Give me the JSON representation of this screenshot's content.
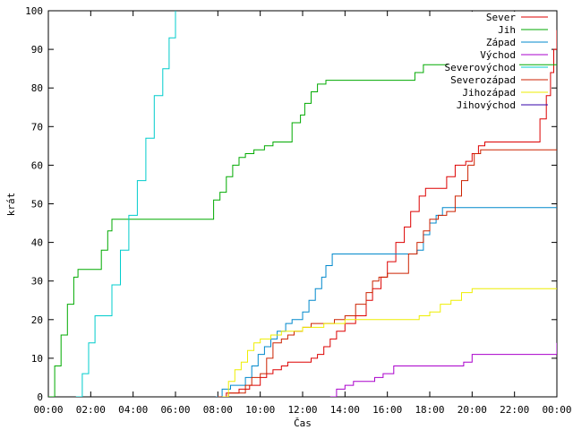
{
  "chart_data": {
    "type": "line",
    "title": "",
    "xlabel": "Čas",
    "ylabel": "krát",
    "xlim": [
      0,
      24
    ],
    "ylim": [
      0,
      100
    ],
    "x_ticks": [
      "00:00",
      "02:00",
      "04:00",
      "06:00",
      "08:00",
      "10:00",
      "12:00",
      "14:00",
      "16:00",
      "18:00",
      "20:00",
      "22:00",
      "00:00"
    ],
    "y_ticks": [
      0,
      10,
      20,
      30,
      40,
      50,
      60,
      70,
      80,
      90,
      100
    ],
    "grid": false,
    "legend_position": "top-right",
    "series": [
      {
        "name": "Sever",
        "color": "#dd0000",
        "points": [
          [
            8.0,
            0
          ],
          [
            8.4,
            1
          ],
          [
            9.0,
            2
          ],
          [
            9.5,
            3
          ],
          [
            10.0,
            5
          ],
          [
            10.3,
            6
          ],
          [
            10.6,
            7
          ],
          [
            11.0,
            8
          ],
          [
            11.3,
            9
          ],
          [
            12.0,
            9
          ],
          [
            12.4,
            10
          ],
          [
            12.7,
            11
          ],
          [
            13.0,
            13
          ],
          [
            13.3,
            15
          ],
          [
            13.6,
            17
          ],
          [
            14.0,
            19
          ],
          [
            14.5,
            21
          ],
          [
            15.0,
            25
          ],
          [
            15.3,
            28
          ],
          [
            15.7,
            31
          ],
          [
            16.0,
            35
          ],
          [
            16.4,
            40
          ],
          [
            16.8,
            44
          ],
          [
            17.1,
            48
          ],
          [
            17.5,
            52
          ],
          [
            17.8,
            54
          ],
          [
            18.5,
            54
          ],
          [
            18.8,
            57
          ],
          [
            19.2,
            60
          ],
          [
            19.7,
            61
          ],
          [
            20.0,
            63
          ],
          [
            20.3,
            65
          ],
          [
            20.6,
            66
          ],
          [
            21.2,
            66
          ],
          [
            22.0,
            66
          ],
          [
            22.8,
            66
          ],
          [
            23.2,
            72
          ],
          [
            23.5,
            78
          ],
          [
            23.7,
            84
          ],
          [
            23.85,
            90
          ],
          [
            24.0,
            95
          ]
        ]
      },
      {
        "name": "Jih",
        "color": "#00aa00",
        "points": [
          [
            0,
            0
          ],
          [
            0.3,
            8
          ],
          [
            0.6,
            16
          ],
          [
            0.9,
            24
          ],
          [
            1.2,
            31
          ],
          [
            1.4,
            33
          ],
          [
            2.2,
            33
          ],
          [
            2.5,
            38
          ],
          [
            2.8,
            43
          ],
          [
            3.0,
            46
          ],
          [
            7.5,
            46
          ],
          [
            7.8,
            51
          ],
          [
            8.1,
            53
          ],
          [
            8.4,
            57
          ],
          [
            8.7,
            60
          ],
          [
            9.0,
            62
          ],
          [
            9.3,
            63
          ],
          [
            9.7,
            64
          ],
          [
            10.2,
            65
          ],
          [
            10.6,
            66
          ],
          [
            11.2,
            66
          ],
          [
            11.5,
            71
          ],
          [
            11.9,
            73
          ],
          [
            12.1,
            76
          ],
          [
            12.4,
            79
          ],
          [
            12.7,
            81
          ],
          [
            13.1,
            82
          ],
          [
            17.0,
            82
          ],
          [
            17.3,
            84
          ],
          [
            17.7,
            86
          ],
          [
            19.0,
            86
          ],
          [
            24.0,
            86
          ]
        ]
      },
      {
        "name": "Západ",
        "color": "#0088cc",
        "points": [
          [
            7.9,
            0
          ],
          [
            8.2,
            2
          ],
          [
            8.6,
            3
          ],
          [
            9.0,
            3
          ],
          [
            9.3,
            5
          ],
          [
            9.6,
            8
          ],
          [
            9.9,
            11
          ],
          [
            10.2,
            13
          ],
          [
            10.5,
            15
          ],
          [
            10.8,
            17
          ],
          [
            11.2,
            19
          ],
          [
            11.5,
            20
          ],
          [
            12.0,
            22
          ],
          [
            12.3,
            25
          ],
          [
            12.6,
            28
          ],
          [
            12.9,
            31
          ],
          [
            13.1,
            34
          ],
          [
            13.4,
            37
          ],
          [
            16.0,
            37
          ],
          [
            17.4,
            38
          ],
          [
            17.7,
            42
          ],
          [
            18.0,
            45
          ],
          [
            18.3,
            47
          ],
          [
            18.6,
            49
          ],
          [
            24.0,
            49
          ]
        ]
      },
      {
        "name": "Východ",
        "color": "#aa00cc",
        "points": [
          [
            13.3,
            0
          ],
          [
            13.6,
            2
          ],
          [
            14.0,
            3
          ],
          [
            14.4,
            4
          ],
          [
            15.0,
            4
          ],
          [
            15.4,
            5
          ],
          [
            15.8,
            6
          ],
          [
            16.3,
            8
          ],
          [
            18.0,
            8
          ],
          [
            19.2,
            8
          ],
          [
            19.6,
            9
          ],
          [
            20.0,
            11
          ],
          [
            22.0,
            11
          ],
          [
            23.0,
            11
          ],
          [
            23.9,
            11
          ],
          [
            24.0,
            14
          ]
        ]
      },
      {
        "name": "Severovýchod",
        "color": "#00cccc",
        "points": [
          [
            1.3,
            0
          ],
          [
            1.6,
            6
          ],
          [
            1.9,
            14
          ],
          [
            2.2,
            21
          ],
          [
            2.6,
            21
          ],
          [
            3.0,
            29
          ],
          [
            3.4,
            38
          ],
          [
            3.8,
            47
          ],
          [
            4.2,
            56
          ],
          [
            4.6,
            67
          ],
          [
            5.0,
            78
          ],
          [
            5.4,
            85
          ],
          [
            5.7,
            93
          ],
          [
            6.0,
            100
          ]
        ]
      },
      {
        "name": "Severozápad",
        "color": "#cc2200",
        "points": [
          [
            8.0,
            0
          ],
          [
            8.5,
            1
          ],
          [
            9.0,
            1
          ],
          [
            9.3,
            3
          ],
          [
            9.6,
            5
          ],
          [
            10.0,
            6
          ],
          [
            10.3,
            10
          ],
          [
            10.6,
            14
          ],
          [
            11.0,
            15
          ],
          [
            11.3,
            16
          ],
          [
            11.6,
            17
          ],
          [
            12.0,
            18
          ],
          [
            12.4,
            19
          ],
          [
            13.0,
            19
          ],
          [
            13.5,
            20
          ],
          [
            14.0,
            21
          ],
          [
            14.5,
            24
          ],
          [
            15.0,
            27
          ],
          [
            15.3,
            30
          ],
          [
            15.6,
            31
          ],
          [
            16.0,
            32
          ],
          [
            16.7,
            32
          ],
          [
            17.0,
            37
          ],
          [
            17.4,
            40
          ],
          [
            17.7,
            43
          ],
          [
            18.0,
            46
          ],
          [
            18.4,
            47
          ],
          [
            18.8,
            48
          ],
          [
            19.2,
            52
          ],
          [
            19.5,
            56
          ],
          [
            19.8,
            60
          ],
          [
            20.1,
            63
          ],
          [
            20.4,
            64
          ],
          [
            24.0,
            64
          ]
        ]
      },
      {
        "name": "Jihozápad",
        "color": "#eeee00",
        "points": [
          [
            8.2,
            0
          ],
          [
            8.5,
            4
          ],
          [
            8.8,
            7
          ],
          [
            9.1,
            9
          ],
          [
            9.4,
            12
          ],
          [
            9.7,
            14
          ],
          [
            10.0,
            15
          ],
          [
            10.5,
            16
          ],
          [
            11.0,
            17
          ],
          [
            12.0,
            18
          ],
          [
            13.0,
            19
          ],
          [
            14.0,
            20
          ],
          [
            16.0,
            20
          ],
          [
            16.5,
            20
          ],
          [
            17.0,
            20
          ],
          [
            17.5,
            21
          ],
          [
            18.0,
            22
          ],
          [
            18.5,
            24
          ],
          [
            19.0,
            25
          ],
          [
            19.5,
            27
          ],
          [
            20.0,
            28
          ],
          [
            24.0,
            28
          ]
        ]
      },
      {
        "name": "Jihovýchod",
        "color": "#3300aa",
        "points": []
      }
    ]
  }
}
